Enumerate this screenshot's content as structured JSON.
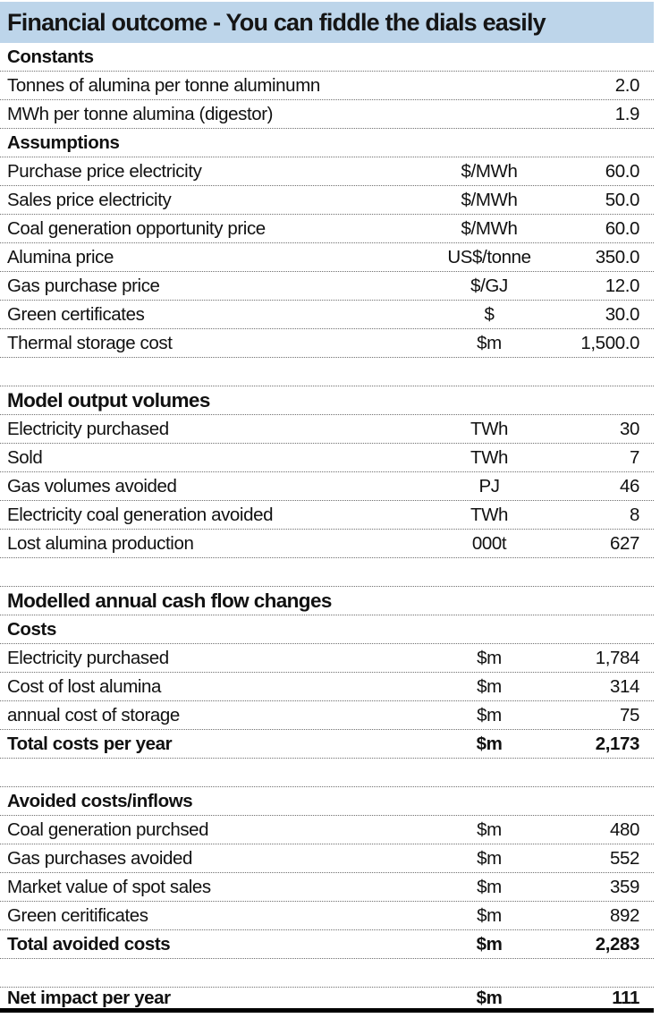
{
  "title": "Financial outcome - You can fiddle the dials easily",
  "colors": {
    "title_bg": "#BDD5EA",
    "hairline": "#6f6f6f",
    "bottom_bar": "#000000"
  },
  "table": {
    "rows": [
      {
        "type": "section",
        "label": "Constants"
      },
      {
        "type": "data",
        "label": "Tonnes of alumina per tonne aluminumn",
        "unit": "",
        "value": "2.0",
        "editable": true
      },
      {
        "type": "data",
        "label": "MWh per tonne alumina (digestor)",
        "unit": "",
        "value": "1.9",
        "editable": true
      },
      {
        "type": "section",
        "label": "Assumptions"
      },
      {
        "type": "data",
        "label": "Purchase price electricity",
        "unit": "$/MWh",
        "value": "60.0",
        "editable": true
      },
      {
        "type": "data",
        "label": "Sales price electricity",
        "unit": "$/MWh",
        "value": "50.0",
        "editable": true
      },
      {
        "type": "data",
        "label": "Coal generation opportunity price",
        "unit": "$/MWh",
        "value": "60.0",
        "editable": true
      },
      {
        "type": "data",
        "label": "Alumina price",
        "unit": "US$/tonne",
        "value": "350.0",
        "editable": true
      },
      {
        "type": "data",
        "label": "Gas purchase price",
        "unit": "$/GJ",
        "value": "12.0",
        "editable": true
      },
      {
        "type": "data",
        "label": "Green certificates",
        "unit": "$",
        "value": "30.0",
        "editable": true
      },
      {
        "type": "data",
        "label": "Thermal storage cost",
        "unit": "$m",
        "value": "1,500.0",
        "editable": true
      },
      {
        "type": "blank"
      },
      {
        "type": "section",
        "label": "Model output volumes",
        "major": true
      },
      {
        "type": "data",
        "label": "Electricity purchased",
        "unit": "TWh",
        "value": "30"
      },
      {
        "type": "data",
        "label": "Sold",
        "unit": "TWh",
        "value": "7"
      },
      {
        "type": "data",
        "label": "Gas volumes avoided",
        "unit": "PJ",
        "value": "46"
      },
      {
        "type": "data",
        "label": "Electricity coal generation avoided",
        "unit": "TWh",
        "value": "8"
      },
      {
        "type": "data",
        "label": "Lost alumina production",
        "unit": "000t",
        "value": "627"
      },
      {
        "type": "blank"
      },
      {
        "type": "section",
        "label": "Modelled annual cash flow changes",
        "major": true
      },
      {
        "type": "section",
        "label": "Costs"
      },
      {
        "type": "data",
        "label": "Electricity purchased",
        "unit": "$m",
        "value": "1,784"
      },
      {
        "type": "data",
        "label": "Cost of lost alumina",
        "unit": "$m",
        "value": "314"
      },
      {
        "type": "data",
        "label": "annual cost of storage",
        "unit": "$m",
        "value": "75"
      },
      {
        "type": "data",
        "label": "Total costs per year",
        "unit": "$m",
        "value": "2,173",
        "bold": true
      },
      {
        "type": "blank"
      },
      {
        "type": "section",
        "label": "Avoided costs/inflows"
      },
      {
        "type": "data",
        "label": "Coal generation purchsed",
        "unit": "$m",
        "value": "480"
      },
      {
        "type": "data",
        "label": "Gas purchases avoided",
        "unit": "$m",
        "value": "552"
      },
      {
        "type": "data",
        "label": "Market value of spot sales",
        "unit": "$m",
        "value": "359"
      },
      {
        "type": "data",
        "label": "Green ceritificates",
        "unit": "$m",
        "value": "892"
      },
      {
        "type": "data",
        "label": "Total avoided costs",
        "unit": "$m",
        "value": "2,283",
        "bold": true
      },
      {
        "type": "blank"
      },
      {
        "type": "net",
        "label": "Net impact per year",
        "unit": "$m",
        "value": "111",
        "bold": true
      }
    ]
  }
}
